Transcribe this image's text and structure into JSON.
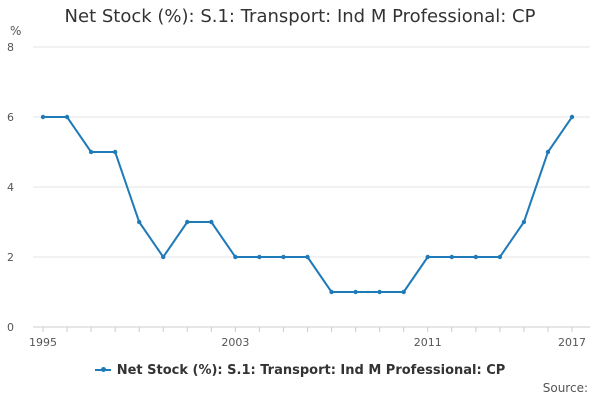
{
  "chart_data": {
    "type": "line",
    "title": "Net Stock (%): S.1: Transport: Ind M Professional: CP",
    "y_unit": "%",
    "ylim": [
      0,
      8
    ],
    "y_ticks": [
      0,
      2,
      4,
      6,
      8
    ],
    "x_ticks": [
      1995,
      2003,
      2011,
      2017
    ],
    "x": [
      1995,
      1996,
      1997,
      1998,
      1999,
      2000,
      2001,
      2002,
      2003,
      2004,
      2005,
      2006,
      2007,
      2008,
      2009,
      2010,
      2011,
      2012,
      2013,
      2014,
      2015,
      2016,
      2017
    ],
    "series": [
      {
        "name": "Net Stock (%): S.1: Transport: Ind M Professional: CP",
        "color": "#1f7ab8",
        "values": [
          6,
          6,
          5,
          5,
          3,
          2,
          3,
          3,
          2,
          2,
          2,
          2,
          1,
          1,
          1,
          1,
          2,
          2,
          2,
          2,
          3,
          5,
          6
        ]
      }
    ],
    "grid": true,
    "legend_position": "bottom"
  },
  "source_label": "Source:"
}
